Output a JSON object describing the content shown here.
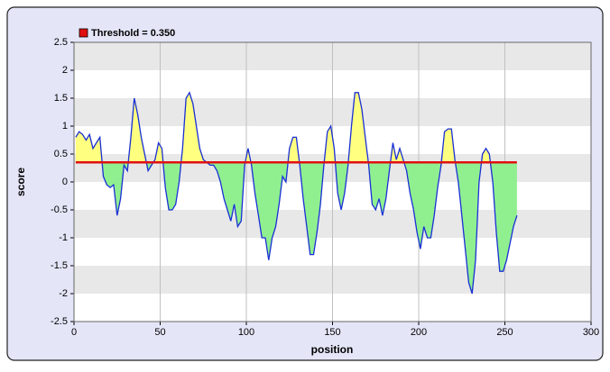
{
  "chart_data": {
    "type": "line",
    "xlabel": "position",
    "ylabel": "score",
    "xlim": [
      0,
      300
    ],
    "ylim": [
      -2.5,
      2.5
    ],
    "xticks": [
      0,
      50,
      100,
      150,
      200,
      250,
      300
    ],
    "yticks": [
      -2.5,
      -2,
      -1.5,
      -1,
      -0.5,
      0,
      0.5,
      1,
      1.5,
      2,
      2.5
    ],
    "grid": true,
    "color": "#1a2fd6",
    "above_color": "#ffff80",
    "below_color": "#90f090",
    "threshold": {
      "value": 0.35,
      "label": "Threshold = 0.350",
      "color": "#e01010"
    },
    "x": [
      1,
      3,
      5,
      7,
      9,
      11,
      13,
      15,
      17,
      19,
      21,
      23,
      25,
      27,
      29,
      31,
      33,
      35,
      37,
      39,
      41,
      43,
      45,
      47,
      49,
      51,
      53,
      55,
      57,
      59,
      61,
      63,
      65,
      67,
      69,
      71,
      73,
      75,
      77,
      79,
      81,
      83,
      85,
      87,
      89,
      91,
      93,
      95,
      97,
      99,
      101,
      103,
      105,
      107,
      109,
      111,
      113,
      115,
      117,
      119,
      121,
      123,
      125,
      127,
      129,
      131,
      133,
      135,
      137,
      139,
      141,
      143,
      145,
      147,
      149,
      151,
      153,
      155,
      157,
      159,
      161,
      163,
      165,
      167,
      169,
      171,
      173,
      175,
      177,
      179,
      181,
      183,
      185,
      187,
      189,
      191,
      193,
      195,
      197,
      199,
      201,
      203,
      205,
      207,
      209,
      211,
      213,
      215,
      217,
      219,
      221,
      223,
      225,
      227,
      229,
      231,
      233,
      235,
      237,
      239,
      241,
      243,
      245,
      247,
      249,
      251,
      253,
      255,
      257
    ],
    "values": [
      0.8,
      0.9,
      0.85,
      0.75,
      0.85,
      0.6,
      0.7,
      0.8,
      0.1,
      -0.05,
      -0.1,
      -0.05,
      -0.6,
      -0.3,
      0.3,
      0.2,
      0.8,
      1.5,
      1.2,
      0.8,
      0.5,
      0.2,
      0.3,
      0.4,
      0.7,
      0.6,
      -0.1,
      -0.5,
      -0.5,
      -0.4,
      0.0,
      0.6,
      1.5,
      1.6,
      1.4,
      1.0,
      0.6,
      0.4,
      0.35,
      0.3,
      0.3,
      0.2,
      0.0,
      -0.3,
      -0.5,
      -0.7,
      -0.4,
      -0.8,
      -0.7,
      0.3,
      0.6,
      0.3,
      -0.2,
      -0.6,
      -1.0,
      -1.0,
      -1.4,
      -1.0,
      -0.8,
      -0.4,
      0.1,
      0.0,
      0.6,
      0.8,
      0.8,
      0.3,
      -0.3,
      -0.8,
      -1.3,
      -1.3,
      -0.9,
      -0.4,
      0.3,
      0.9,
      1.0,
      0.6,
      -0.2,
      -0.5,
      -0.2,
      0.3,
      1.0,
      1.6,
      1.6,
      1.3,
      0.8,
      0.3,
      -0.4,
      -0.5,
      -0.3,
      -0.6,
      -0.3,
      0.2,
      0.7,
      0.4,
      0.6,
      0.4,
      0.2,
      -0.2,
      -0.5,
      -0.9,
      -1.2,
      -0.8,
      -1.0,
      -1.0,
      -0.6,
      -0.1,
      0.3,
      0.9,
      0.95,
      0.95,
      0.4,
      0.0,
      -0.6,
      -1.2,
      -1.8,
      -2.0,
      -1.4,
      0.0,
      0.5,
      0.6,
      0.5,
      0.0,
      -0.9,
      -1.6,
      -1.6,
      -1.4,
      -1.1,
      -0.8,
      -0.6
    ]
  }
}
